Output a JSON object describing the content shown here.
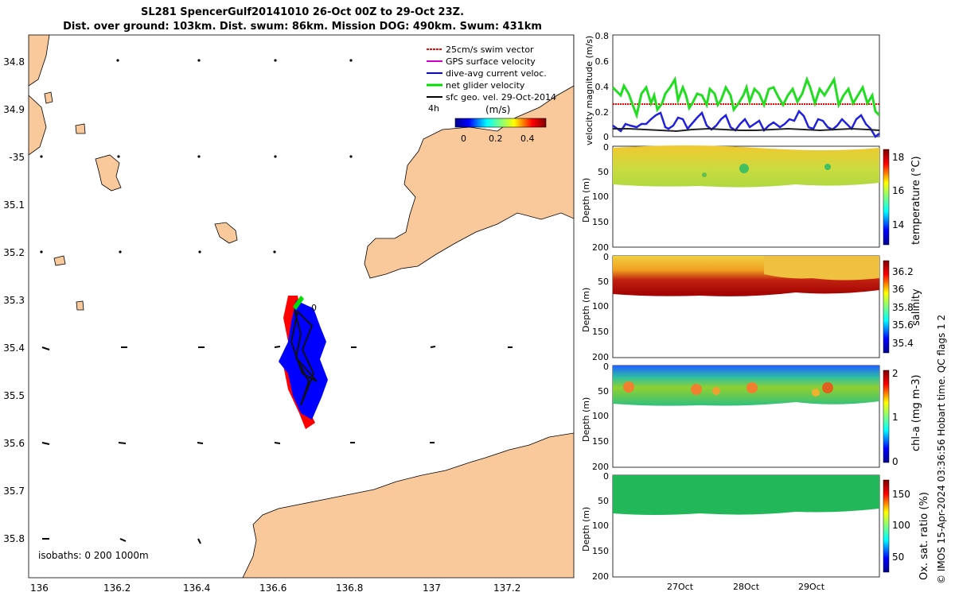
{
  "title": {
    "line1": "SL281 SpencerGulf20141010 26-Oct 00Z to 29-Oct 23Z.",
    "line2": "Dist. over ground: 103km. Dist. swum: 86km. Mission DOG: 490km. Swum: 431km"
  },
  "map": {
    "lon_ticks": [
      "136",
      "136.2",
      "136.4",
      "136.6",
      "136.8",
      "137",
      "137.2"
    ],
    "lat_ticks": [
      "34.8",
      "34.9",
      "-35",
      "35.1",
      "35.2",
      "35.3",
      "35.4",
      "35.5",
      "35.6",
      "35.7",
      "35.8"
    ],
    "legend": [
      {
        "label": "25cm/s swim vector",
        "color": "#ff0000"
      },
      {
        "label": "GPS surface velocity",
        "color": "#cc00cc"
      },
      {
        "label": "dive-avg current veloc.",
        "color": "#0000ff"
      },
      {
        "label": "net glider velocity",
        "color": "#00dd00"
      },
      {
        "label": "sfc geo. vel. 29-Oct-2014",
        "color": "#000000"
      }
    ],
    "legend_note": "4h",
    "colorbar": {
      "label": "(m/s)",
      "ticks": [
        "0",
        "0.2",
        "0.4"
      ]
    },
    "isobaths": "isobaths: 0   200   1000m",
    "track_marker": "0",
    "land_color": "#f9c99b"
  },
  "panels": {
    "velocity": {
      "ylabel": "velocity magnitude (m/s)",
      "yticks": [
        "0.8",
        "0.6",
        "0.4",
        "0.2",
        "0"
      ]
    },
    "depth_ylabel": "Depth (m)",
    "depth_ticks": [
      "0",
      "50",
      "100",
      "150",
      "200"
    ],
    "sections": [
      {
        "label": "temperature (°C)",
        "ticks": [
          "18",
          "16",
          "14"
        ]
      },
      {
        "label": "salinity",
        "ticks": [
          "36.2",
          "36",
          "35.8",
          "35.6",
          "35.4"
        ]
      },
      {
        "label": "chl-a (mg m-3)",
        "ticks": [
          "2",
          "1",
          "0"
        ]
      },
      {
        "label": "Ox. sat. ratio (%)",
        "ticks": [
          "150",
          "100",
          "50"
        ]
      }
    ],
    "time_ticks": [
      "27Oct",
      "28Oct",
      "29Oct"
    ]
  },
  "credit": "© IMOS 15-Apr-2024 03:36:56 Hobart time. QC flags 1  2"
}
